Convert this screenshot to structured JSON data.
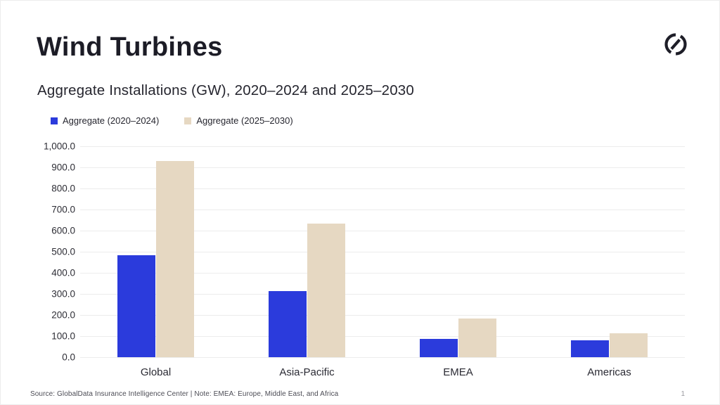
{
  "header": {
    "title": "Wind Turbines"
  },
  "chart_data": {
    "type": "bar",
    "title": "Aggregate Installations (GW), 2020–2024 and 2025–2030",
    "categories": [
      "Global",
      "Asia-Pacific",
      "EMEA",
      "Americas"
    ],
    "series": [
      {
        "name": "Aggregate (2020–2024)",
        "color": "#2b3bdc",
        "values": [
          485,
          315,
          88,
          80
        ]
      },
      {
        "name": "Aggregate (2025–2030)",
        "color": "#e6d8c2",
        "values": [
          930,
          635,
          185,
          112
        ]
      }
    ],
    "ylim": [
      0,
      1000
    ],
    "ytick_step": 100,
    "ytick_labels": [
      "0.0",
      "100.0",
      "200.0",
      "300.0",
      "400.0",
      "500.0",
      "600.0",
      "700.0",
      "800.0",
      "900.0",
      "1,000.0"
    ],
    "grid": true,
    "gridline_color": "#ececec",
    "legend_position": "top-left"
  },
  "footer": {
    "source": "Source: GlobalData Insurance Intelligence Center | Note: EMEA: Europe, Middle East, and Africa",
    "page_number": "1"
  }
}
